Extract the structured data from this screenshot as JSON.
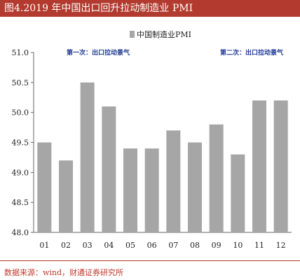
{
  "figure_title": "图4.2019 年中国出口回升拉动制造业 PMI",
  "source_text": "数据来源：wind，财通证券研究所",
  "colors": {
    "bar": "#a6a6a6",
    "title_bg": "#b23a2e",
    "annotation": "#1f3a93",
    "source": "#c0392b"
  },
  "chart_data": {
    "type": "bar",
    "title": "",
    "xlabel": "",
    "ylabel": "",
    "categories": [
      "01",
      "02",
      "03",
      "04",
      "05",
      "06",
      "07",
      "08",
      "09",
      "10",
      "11",
      "12"
    ],
    "series": [
      {
        "name": "中国制造业PMI",
        "values": [
          49.5,
          49.2,
          50.5,
          50.1,
          49.4,
          49.4,
          49.7,
          49.5,
          49.8,
          49.3,
          50.2,
          50.2
        ]
      }
    ],
    "ylim": [
      48.0,
      51.0
    ],
    "yticks": [
      "51.0",
      "50.5",
      "50.0",
      "49.5",
      "49.0",
      "48.5",
      "48.0"
    ],
    "grid": false,
    "legend_position": "top-center",
    "annotations": [
      {
        "text": "第一次：出口拉动景气",
        "position": "upper-left"
      },
      {
        "text": "第二次：出口拉动景气",
        "position": "upper-right"
      }
    ]
  }
}
